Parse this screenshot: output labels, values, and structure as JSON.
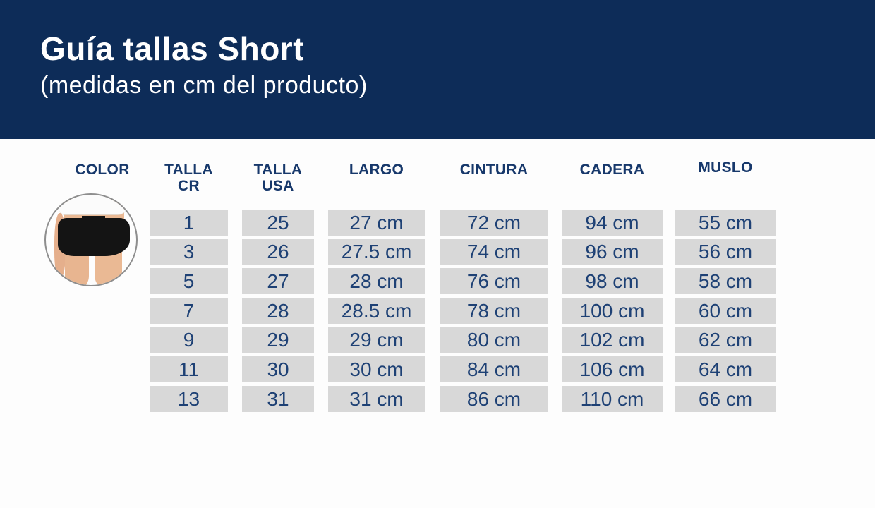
{
  "header": {
    "title": "Guía tallas Short",
    "subtitle": "(medidas en cm del producto)",
    "band_color": "#0d2c58",
    "text_color": "#ffffff"
  },
  "table": {
    "header_text_color": "#17386b",
    "cell_bg_color": "#d8d8d8",
    "cell_text_color": "#1e4175",
    "columns": {
      "color": "COLOR",
      "talla_cr": "TALLA\nCR",
      "talla_usa": "TALLA\nUSA",
      "largo": "LARGO",
      "cintura": "CINTURA",
      "cadera": "CADERA",
      "muslo": "MUSLO"
    },
    "rows": [
      {
        "talla_cr": "1",
        "talla_usa": "25",
        "largo": "27 cm",
        "cintura": "72 cm",
        "cadera": "94 cm",
        "muslo": "55 cm"
      },
      {
        "talla_cr": "3",
        "talla_usa": "26",
        "largo": "27.5 cm",
        "cintura": "74 cm",
        "cadera": "96 cm",
        "muslo": "56 cm"
      },
      {
        "talla_cr": "5",
        "talla_usa": "27",
        "largo": "28 cm",
        "cintura": "76 cm",
        "cadera": "98 cm",
        "muslo": "58 cm"
      },
      {
        "talla_cr": "7",
        "talla_usa": "28",
        "largo": "28.5 cm",
        "cintura": "78 cm",
        "cadera": "100 cm",
        "muslo": "60 cm"
      },
      {
        "talla_cr": "9",
        "talla_usa": "29",
        "largo": "29 cm",
        "cintura": "80 cm",
        "cadera": "102 cm",
        "muslo": "62 cm"
      },
      {
        "talla_cr": "11",
        "talla_usa": "30",
        "largo": "30 cm",
        "cintura": "84 cm",
        "cadera": "106 cm",
        "muslo": "64 cm"
      },
      {
        "talla_cr": "13",
        "talla_usa": "31",
        "largo": "31 cm",
        "cintura": "86 cm",
        "cadera": "110 cm",
        "muslo": "66 cm"
      }
    ]
  }
}
